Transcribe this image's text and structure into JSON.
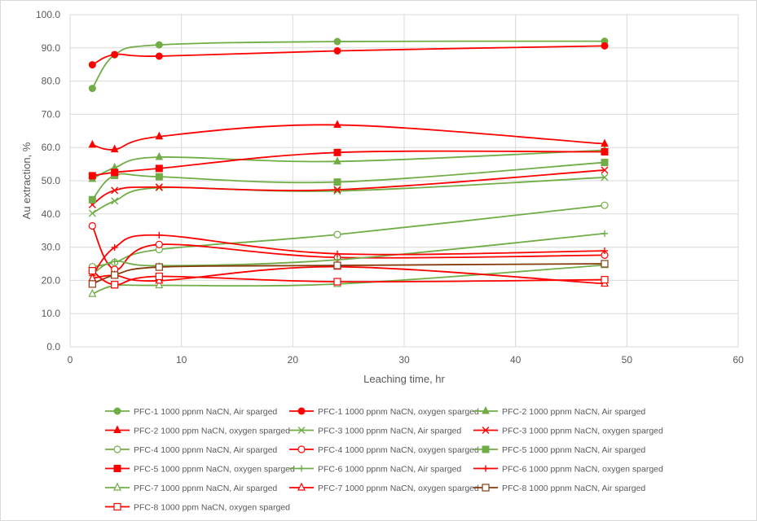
{
  "chart_data": {
    "type": "line",
    "title": "",
    "xlabel": "Leaching time, hr",
    "ylabel": "Au extraction, %",
    "xlim": [
      0,
      60
    ],
    "ylim": [
      0,
      100
    ],
    "x_ticks": [
      "0",
      "10",
      "20",
      "30",
      "40",
      "50",
      "60"
    ],
    "y_ticks": [
      "0.0",
      "10.0",
      "20.0",
      "30.0",
      "40.0",
      "50.0",
      "60.0",
      "70.0",
      "80.0",
      "90.0",
      "100.0"
    ],
    "grid": "both",
    "legend_position": "bottom",
    "x": [
      2,
      4,
      8,
      24,
      48
    ],
    "series": [
      {
        "name": "PFC-1 1000 ppnm NaCN, Air sparged",
        "color": "#70ad47",
        "marker": "circle",
        "values": [
          77.8,
          87.9,
          90.9,
          91.9,
          92.0
        ]
      },
      {
        "name": "PFC-1 1000 ppnm NaCN, oxygen sparged",
        "color": "#ff0000",
        "marker": "circle",
        "values": [
          84.9,
          88.0,
          87.5,
          89.1,
          90.6
        ]
      },
      {
        "name": "PFC-2 1000 ppnm NaCN, Air sparged",
        "color": "#70ad47",
        "marker": "triangle",
        "values": [
          50.5,
          53.9,
          57.1,
          55.8,
          59.2
        ]
      },
      {
        "name": "PFC-2 1000 ppm NaCN, oxygen sparged",
        "color": "#ff0000",
        "marker": "triangle",
        "values": [
          60.8,
          59.4,
          63.3,
          66.8,
          61.1
        ]
      },
      {
        "name": "PFC-3 1000 ppnm NaCN, Air sparged",
        "color": "#70ad47",
        "marker": "x",
        "values": [
          40.2,
          43.9,
          47.9,
          46.9,
          51.0
        ]
      },
      {
        "name": "PFC-3 1000 ppnm NaCN, oxygen sparged",
        "color": "#ff0000",
        "marker": "x",
        "values": [
          42.8,
          47.1,
          48.1,
          47.3,
          53.2
        ]
      },
      {
        "name": "PFC-4 1000 ppnm NaCN, Air sparged",
        "color": "#70ad47",
        "marker": "open-circle",
        "values": [
          24.1,
          25.4,
          29.3,
          33.8,
          42.6
        ]
      },
      {
        "name": "PFC-4 1000 ppnm NaCN, oxygen sparged",
        "color": "#ff0000",
        "marker": "open-circle",
        "values": [
          36.4,
          23.3,
          30.8,
          26.9,
          27.6
        ]
      },
      {
        "name": "PFC-5 1000 ppnm NaCN, Air sparged",
        "color": "#70ad47",
        "marker": "square",
        "values": [
          44.3,
          51.6,
          51.2,
          49.6,
          55.5
        ]
      },
      {
        "name": "PFC-5 1000 ppnm NaCN, oxygen sparged",
        "color": "#ff0000",
        "marker": "square",
        "values": [
          51.5,
          52.5,
          53.7,
          58.5,
          58.7
        ]
      },
      {
        "name": "PFC-6 1000 ppnm NaCN, Air sparged",
        "color": "#70ad47",
        "marker": "plus",
        "values": [
          21.8,
          25.7,
          24.4,
          26.2,
          34.1
        ]
      },
      {
        "name": "PFC-6 1000 ppnm NaCN, oxygen sparged",
        "color": "#ff0000",
        "marker": "plus",
        "values": [
          21.4,
          29.9,
          33.6,
          28.0,
          28.9
        ]
      },
      {
        "name": "PFC-7 1000 ppnm NaCN, Air sparged",
        "color": "#70ad47",
        "marker": "open-triangle",
        "values": [
          15.9,
          18.4,
          18.5,
          18.9,
          24.6
        ]
      },
      {
        "name": "PFC-7 1000 ppnm NaCN, oxygen sparged",
        "color": "#ff0000",
        "marker": "open-triangle",
        "values": [
          20.6,
          21.5,
          19.9,
          24.1,
          19.0
        ]
      },
      {
        "name": "PFC-8 1000 ppnm NaCN, Air sparged",
        "color": "#843c0c",
        "marker": "open-square",
        "values": [
          18.9,
          21.6,
          24.0,
          24.5,
          25.0
        ]
      },
      {
        "name": "PFC-8 1000 ppm NaCN, oxygen sparged",
        "color": "#ff0000",
        "marker": "open-square",
        "values": [
          22.9,
          18.7,
          21.2,
          19.6,
          20.2
        ]
      }
    ]
  }
}
